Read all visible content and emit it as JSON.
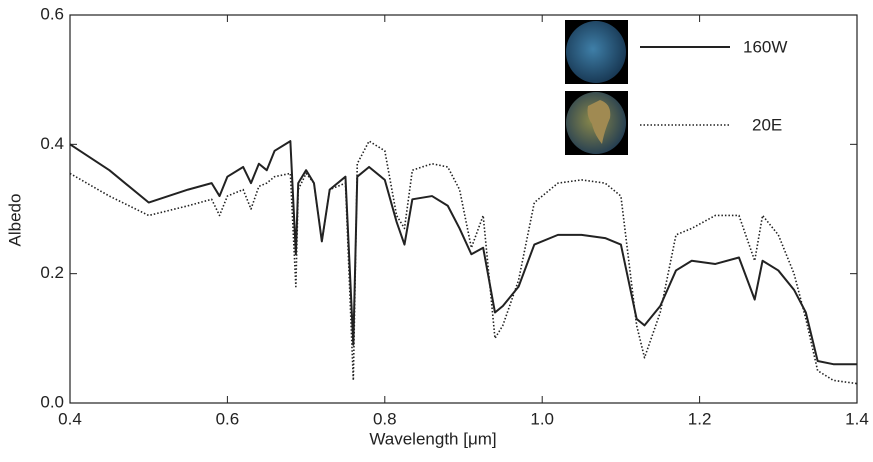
{
  "chart_data": {
    "type": "line",
    "xlabel": "Wavelength [μm]",
    "ylabel": "Albedo",
    "x": [
      0.4,
      0.45,
      0.5,
      0.55,
      0.58,
      0.59,
      0.6,
      0.62,
      0.63,
      0.64,
      0.65,
      0.66,
      0.68,
      0.687,
      0.69,
      0.7,
      0.71,
      0.72,
      0.73,
      0.75,
      0.76,
      0.765,
      0.78,
      0.8,
      0.815,
      0.825,
      0.835,
      0.86,
      0.88,
      0.895,
      0.91,
      0.925,
      0.94,
      0.95,
      0.97,
      0.99,
      1.02,
      1.05,
      1.08,
      1.1,
      1.12,
      1.13,
      1.15,
      1.17,
      1.19,
      1.22,
      1.25,
      1.27,
      1.28,
      1.3,
      1.32,
      1.335,
      1.35,
      1.37,
      1.4
    ],
    "series": [
      {
        "name": "160W",
        "color": "#222222",
        "line_style": "solid",
        "values": [
          0.4,
          0.36,
          0.31,
          0.33,
          0.34,
          0.32,
          0.35,
          0.365,
          0.34,
          0.37,
          0.36,
          0.39,
          0.405,
          0.23,
          0.34,
          0.36,
          0.34,
          0.25,
          0.33,
          0.35,
          0.09,
          0.35,
          0.365,
          0.345,
          0.28,
          0.245,
          0.315,
          0.32,
          0.305,
          0.27,
          0.23,
          0.24,
          0.14,
          0.15,
          0.18,
          0.245,
          0.26,
          0.26,
          0.255,
          0.245,
          0.13,
          0.12,
          0.15,
          0.205,
          0.22,
          0.215,
          0.225,
          0.16,
          0.22,
          0.205,
          0.175,
          0.14,
          0.065,
          0.06,
          0.06
        ]
      },
      {
        "name": "20E",
        "color": "#222222",
        "line_style": "dotted",
        "values": [
          0.355,
          0.32,
          0.29,
          0.305,
          0.315,
          0.29,
          0.32,
          0.33,
          0.3,
          0.335,
          0.34,
          0.35,
          0.355,
          0.18,
          0.33,
          0.355,
          0.34,
          0.25,
          0.33,
          0.34,
          0.035,
          0.37,
          0.405,
          0.39,
          0.29,
          0.27,
          0.36,
          0.37,
          0.365,
          0.33,
          0.24,
          0.29,
          0.1,
          0.12,
          0.19,
          0.31,
          0.34,
          0.345,
          0.34,
          0.32,
          0.12,
          0.07,
          0.14,
          0.26,
          0.27,
          0.29,
          0.29,
          0.22,
          0.29,
          0.26,
          0.2,
          0.13,
          0.05,
          0.035,
          0.03
        ]
      }
    ],
    "xlim": [
      0.4,
      1.4
    ],
    "xticks": [
      0.4,
      0.6,
      0.8,
      {
        "value": 1,
        "label": "1.0"
      },
      1.2,
      1.4
    ],
    "ylim": [
      0,
      0.6
    ],
    "yticks": [
      {
        "value": 0,
        "label": "0.0"
      },
      0.2,
      0.4,
      0.6
    ],
    "legend": "upper right"
  }
}
